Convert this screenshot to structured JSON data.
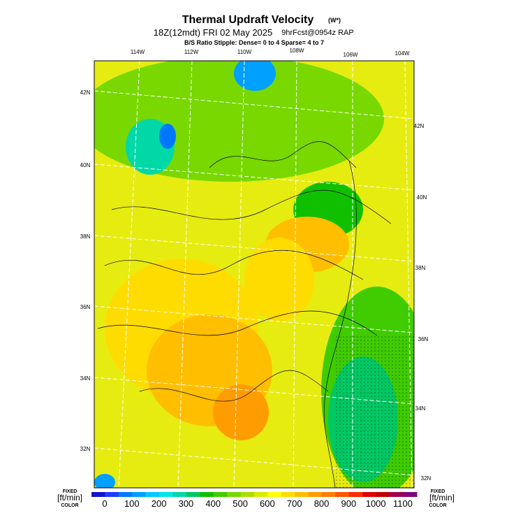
{
  "header": {
    "title": "Thermal Updraft Velocity",
    "title_units": "(W*)",
    "subtitle": "18Z(12mdt) FRI 02 May 2025",
    "subtitle_small": "9hrFcst@0954z RAP",
    "stipple_note": "B/S Ratio Stipple:  Dense= 0 to 4  Sparse= 4 to 7"
  },
  "lon_labels": [
    "114W",
    "112W",
    "110W",
    "108W",
    "106W",
    "104W"
  ],
  "lat_labels_left": [
    "42N",
    "40N",
    "38N",
    "36N",
    "34N",
    "32N"
  ],
  "lat_labels_right": [
    "42N",
    "40N",
    "38N",
    "36N",
    "34N",
    "32N"
  ],
  "colorbar": {
    "left_label": {
      "fixed": "FIXED",
      "units": "[ft/min]",
      "color": "COLOR"
    },
    "right_label": {
      "fixed": "FIXED",
      "units": "[ft/min]",
      "color": "COLOR"
    },
    "ticks": [
      "0",
      "100",
      "200",
      "300",
      "400",
      "500",
      "600",
      "700",
      "800",
      "900",
      "1000",
      "1100"
    ],
    "colors": [
      "#1414c8",
      "#1e3cff",
      "#0078ff",
      "#00a0ff",
      "#00c8ff",
      "#00e6e6",
      "#00d8a8",
      "#00c864",
      "#10c000",
      "#40cc00",
      "#78d800",
      "#a8e000",
      "#d8ec00",
      "#ffff00",
      "#ffdc00",
      "#ffbe00",
      "#ff9c00",
      "#ff7c00",
      "#ff5400",
      "#ff2c00",
      "#e00000",
      "#c00000",
      "#a00050",
      "#800080"
    ]
  }
}
